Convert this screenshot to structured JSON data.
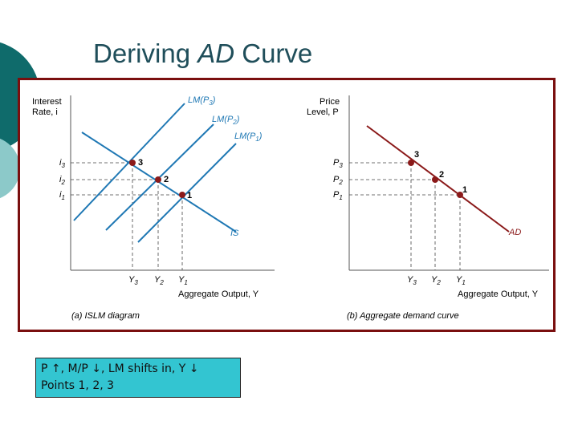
{
  "title": {
    "prefix": "Deriving ",
    "emph": "AD",
    "suffix": " Curve"
  },
  "panel_a": {
    "ylabel_line1": "Interest",
    "ylabel_line2": "Rate, i",
    "ylevels": [
      {
        "base": "i",
        "sub": "3"
      },
      {
        "base": "i",
        "sub": "2"
      },
      {
        "base": "i",
        "sub": "1"
      }
    ],
    "lm_curves": [
      {
        "base": "LM(P",
        "sub": "3",
        "end": ")"
      },
      {
        "base": "LM(P",
        "sub": "2",
        "end": ")"
      },
      {
        "base": "LM(P",
        "sub": "1",
        "end": ")"
      }
    ],
    "is_label": "IS",
    "points": [
      "3",
      "2",
      "1"
    ],
    "xticks": [
      {
        "base": "Y",
        "sub": "3"
      },
      {
        "base": "Y",
        "sub": "2"
      },
      {
        "base": "Y",
        "sub": "1"
      }
    ],
    "xlabel": "Aggregate Output, Y",
    "caption": "(a) ISLM diagram"
  },
  "panel_b": {
    "ylabel_line1": "Price",
    "ylabel_line2": "Level, P",
    "ylevels": [
      {
        "base": "P",
        "sub": "3"
      },
      {
        "base": "P",
        "sub": "2"
      },
      {
        "base": "P",
        "sub": "1"
      }
    ],
    "curve_label": "AD",
    "points": [
      "3",
      "2",
      "1"
    ],
    "xticks": [
      {
        "base": "Y",
        "sub": "3"
      },
      {
        "base": "Y",
        "sub": "2"
      },
      {
        "base": "Y",
        "sub": "1"
      }
    ],
    "xlabel": "Aggregate Output, Y",
    "caption": "(b) Aggregate demand curve"
  },
  "note": {
    "line1": "P ↑, M/P ↓, LM shifts in, Y ↓",
    "line2": "Points 1, 2, 3"
  },
  "colors": {
    "teal_dark": "#0f6b6b",
    "teal_light": "#8cc9c9",
    "curve_blue": "#1f78b4",
    "ad_red": "#8b1a1a",
    "point": "#8b1a1a",
    "frame": "#7a0f0f",
    "note_bg": "#33c5d1"
  }
}
